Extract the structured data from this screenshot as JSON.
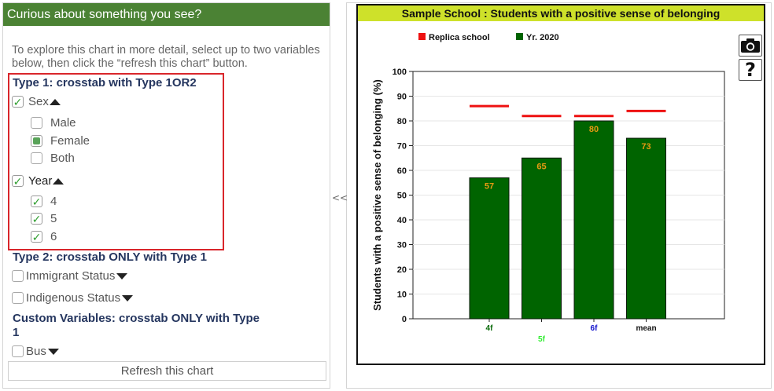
{
  "panel": {
    "header": "Curious about something you see?",
    "intro": "To explore this chart in more detail, select up to two variables below, then click the “refresh this chart” button.",
    "type1_title": "Type 1: crosstab with Type 1OR2",
    "sex_label": "Sex",
    "sex_options": [
      "Male",
      "Female",
      "Both"
    ],
    "year_label": "Year",
    "year_options": [
      "4",
      "5",
      "6"
    ],
    "type2_title": "Type 2: crosstab ONLY with Type 1",
    "immigrant_label": "Immigrant Status",
    "indigenous_label": "Indigenous Status",
    "custom_title_line1": "Custom Variables: crosstab ONLY with Type",
    "custom_title_line2": "1",
    "bus_label": "Bus",
    "refresh_label": "Refresh this chart"
  },
  "splitter": {
    "toggle": "<<"
  },
  "toolbar": {
    "help_label": "?"
  },
  "chart_data": {
    "type": "bar",
    "title": "Sample School : Students with a positive sense of belonging",
    "ylabel": "Students with a positive sense of belonging (%)",
    "xlabel": "",
    "ylim": [
      0,
      100
    ],
    "yticks": [
      0,
      10,
      20,
      30,
      40,
      50,
      60,
      70,
      80,
      90,
      100
    ],
    "categories": [
      "4f",
      "5f",
      "6f",
      "mean"
    ],
    "category_colors": [
      "#0a6a0a",
      "#33ee33",
      "#1111cc",
      "#111111"
    ],
    "series": [
      {
        "name": "Replica school",
        "type": "marker-line",
        "color": "#ee1111",
        "values": [
          86,
          82,
          82,
          84
        ]
      },
      {
        "name": "Yr. 2020",
        "type": "bar",
        "color": "#006400",
        "values": [
          57,
          65,
          80,
          73
        ]
      }
    ],
    "value_label_color": "#e69a12",
    "legend_position": "top"
  }
}
